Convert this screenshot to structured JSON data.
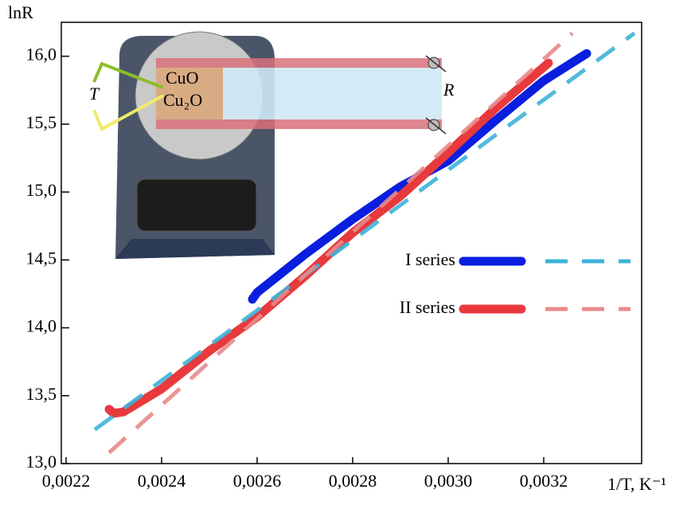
{
  "chart_data": {
    "type": "line",
    "y_label": "lnR",
    "x_label": "1/T, K⁻¹",
    "xlim": [
      0.00219,
      0.003405
    ],
    "ylim": [
      13.0,
      16.25
    ],
    "xticks": [
      {
        "value": 0.0022,
        "label": "0,0022"
      },
      {
        "value": 0.0024,
        "label": "0,0024"
      },
      {
        "value": 0.0026,
        "label": "0,0026"
      },
      {
        "value": 0.0028,
        "label": "0,0028"
      },
      {
        "value": 0.003,
        "label": "0,0030"
      },
      {
        "value": 0.0032,
        "label": "0,0032"
      }
    ],
    "yticks": [
      {
        "value": 13,
        "label": "13,0"
      },
      {
        "value": 13.5,
        "label": "13,5"
      },
      {
        "value": 14,
        "label": "14,0"
      },
      {
        "value": 14.5,
        "label": "14,5"
      },
      {
        "value": 15,
        "label": "15,0"
      },
      {
        "value": 15.5,
        "label": "15,5"
      },
      {
        "value": 16,
        "label": "16,0"
      }
    ],
    "series": [
      {
        "name": "I series",
        "color": "#0a1ee0",
        "style": "solid",
        "x": [
          0.00259,
          0.0026,
          0.0027,
          0.0028,
          0.0029,
          0.003,
          0.0031,
          0.0032,
          0.00329
        ],
        "values": [
          14.21,
          14.26,
          14.54,
          14.8,
          15.04,
          15.23,
          15.53,
          15.82,
          16.02
        ]
      },
      {
        "name": "II series",
        "color": "#e8393d",
        "style": "solid",
        "x": [
          0.00229,
          0.0023,
          0.00232,
          0.0024,
          0.0025,
          0.0026,
          0.0027,
          0.0028,
          0.0029,
          0.003,
          0.0031,
          0.00321
        ],
        "values": [
          13.4,
          13.37,
          13.38,
          13.55,
          13.83,
          14.08,
          14.38,
          14.7,
          14.97,
          15.29,
          15.62,
          15.95
        ]
      },
      {
        "color": "#3db3d8",
        "style": "dashed",
        "x": [
          0.00226,
          0.00339
        ],
        "values": [
          13.25,
          16.17
        ]
      },
      {
        "color": "#e88a8a",
        "style": "dashed",
        "x": [
          0.00229,
          0.00326
        ],
        "values": [
          13.08,
          16.17
        ]
      }
    ],
    "inset_labels": {
      "cuo": "CuO",
      "cu2o": "Cu₂O",
      "t": "T",
      "r": "R"
    }
  }
}
